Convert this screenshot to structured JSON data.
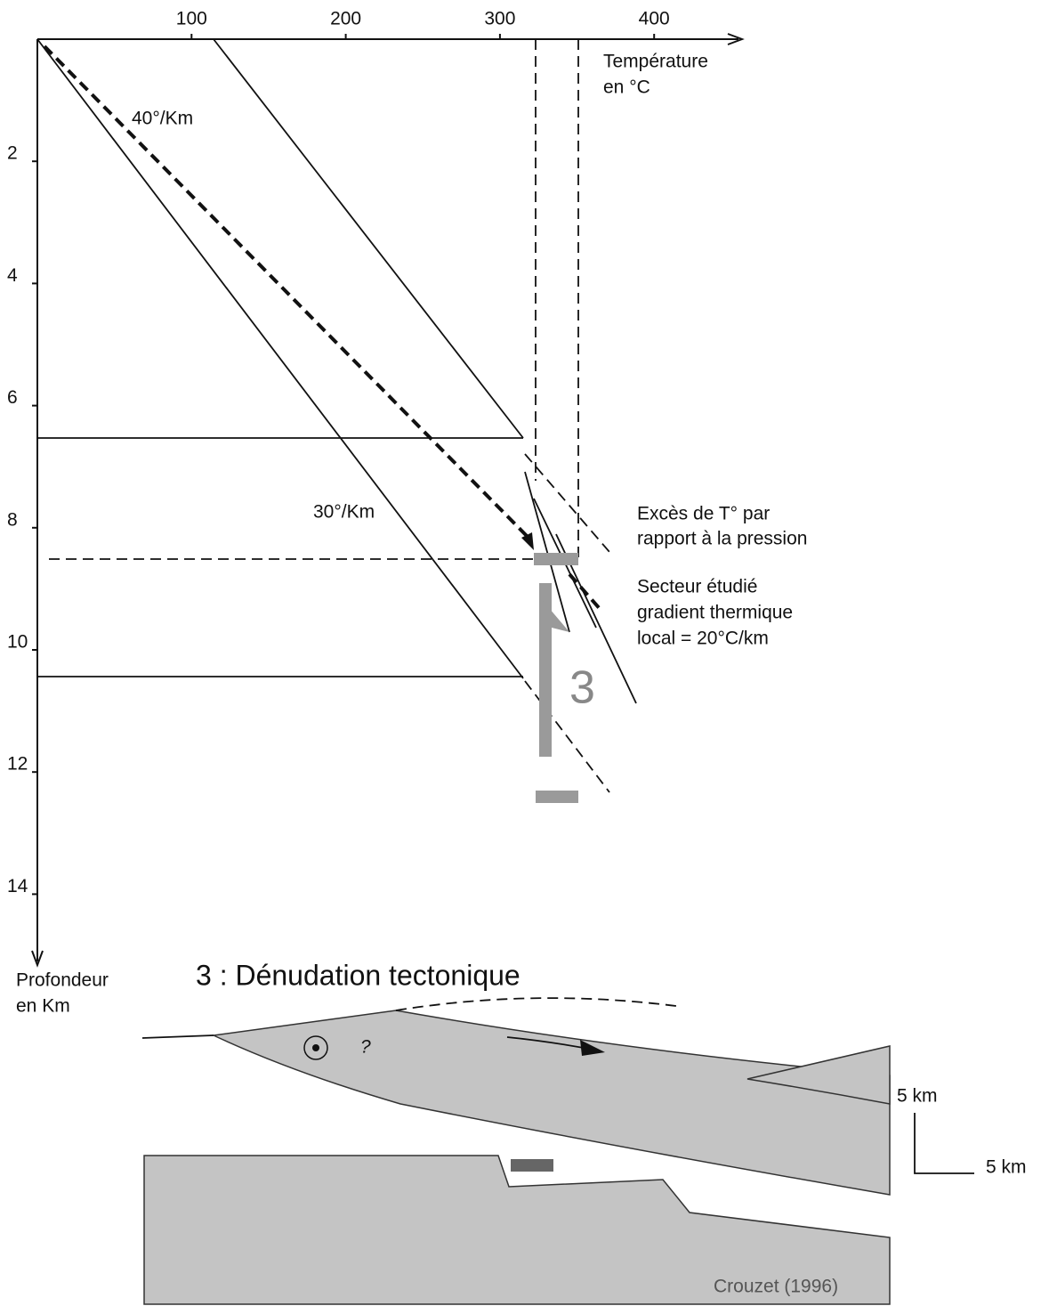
{
  "diagram": {
    "x_axis": {
      "ticks": [
        100,
        200,
        300,
        400
      ],
      "label": [
        "Température",
        "en °C"
      ]
    },
    "y_axis": {
      "ticks": [
        2,
        4,
        6,
        8,
        10,
        12,
        14
      ],
      "label": [
        "Profondeur",
        "en Km"
      ]
    },
    "annotations": {
      "gradient_40": "40°/Km",
      "gradient_30": "30°/Km",
      "excess": [
        "Excès de T° par",
        "rapport à la pression"
      ],
      "sector": [
        "Secteur étudié",
        "gradient thermique",
        "local = 20°C/km"
      ],
      "marker": "3"
    },
    "section": {
      "title": "3 : Dénudation tectonique",
      "question": "?",
      "scale_vertical": "5 km",
      "scale_horizontal": "5 km",
      "credit": "Crouzet (1996)"
    }
  }
}
